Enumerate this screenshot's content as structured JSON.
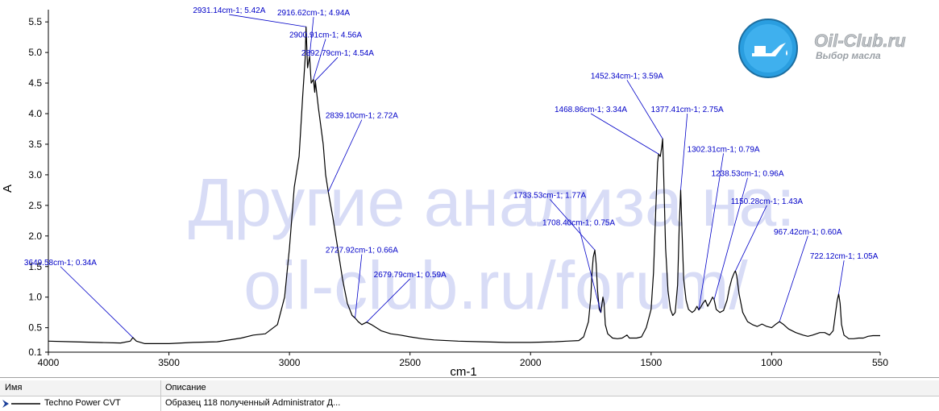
{
  "chart_data": {
    "type": "line",
    "xlabel": "cm-1",
    "ylabel": "A",
    "xlim": [
      4000,
      550
    ],
    "ylim": [
      0.1,
      5.7
    ],
    "x_ticks": [
      4000,
      3500,
      3000,
      2500,
      2000,
      1500,
      1000,
      550
    ],
    "y_ticks": [
      0.1,
      0.5,
      1.0,
      1.5,
      2.0,
      2.5,
      3.0,
      3.5,
      4.0,
      4.5,
      5.0,
      5.5
    ],
    "y_tick_labels": [
      "0.1",
      "0.5",
      "1.0",
      "1.5",
      "2.0",
      "2.5",
      "3.0",
      "3.5",
      "4.0",
      "4.5",
      "5.0",
      "5.5"
    ],
    "line_color": "#000000",
    "annotation_color": "#0000c8",
    "grid": false,
    "series": [
      {
        "name": "Techno Power CVT",
        "points": [
          [
            4000,
            0.28
          ],
          [
            3900,
            0.27
          ],
          [
            3800,
            0.26
          ],
          [
            3700,
            0.25
          ],
          [
            3660,
            0.28
          ],
          [
            3649.58,
            0.34
          ],
          [
            3635,
            0.28
          ],
          [
            3600,
            0.24
          ],
          [
            3500,
            0.24
          ],
          [
            3400,
            0.26
          ],
          [
            3300,
            0.27
          ],
          [
            3200,
            0.33
          ],
          [
            3150,
            0.38
          ],
          [
            3100,
            0.4
          ],
          [
            3050,
            0.55
          ],
          [
            3020,
            1.0
          ],
          [
            3000,
            1.8
          ],
          [
            2980,
            2.8
          ],
          [
            2960,
            3.3
          ],
          [
            2945,
            4.3
          ],
          [
            2935,
            4.9
          ],
          [
            2931.14,
            5.42
          ],
          [
            2925,
            4.75
          ],
          [
            2916.62,
            4.94
          ],
          [
            2910,
            4.5
          ],
          [
            2900.91,
            4.56
          ],
          [
            2895,
            4.35
          ],
          [
            2892.79,
            4.54
          ],
          [
            2880,
            4.1
          ],
          [
            2860,
            3.5
          ],
          [
            2850,
            3.0
          ],
          [
            2839.1,
            2.72
          ],
          [
            2820,
            2.3
          ],
          [
            2800,
            1.8
          ],
          [
            2780,
            1.3
          ],
          [
            2760,
            0.9
          ],
          [
            2740,
            0.7
          ],
          [
            2727.92,
            0.66
          ],
          [
            2715,
            0.6
          ],
          [
            2700,
            0.55
          ],
          [
            2690,
            0.57
          ],
          [
            2679.79,
            0.59
          ],
          [
            2660,
            0.55
          ],
          [
            2620,
            0.45
          ],
          [
            2580,
            0.4
          ],
          [
            2540,
            0.38
          ],
          [
            2500,
            0.35
          ],
          [
            2450,
            0.32
          ],
          [
            2400,
            0.3
          ],
          [
            2300,
            0.28
          ],
          [
            2200,
            0.27
          ],
          [
            2100,
            0.26
          ],
          [
            2000,
            0.26
          ],
          [
            1900,
            0.27
          ],
          [
            1850,
            0.28
          ],
          [
            1800,
            0.29
          ],
          [
            1780,
            0.35
          ],
          [
            1760,
            0.6
          ],
          [
            1750,
            1.0
          ],
          [
            1745,
            1.4
          ],
          [
            1740,
            1.65
          ],
          [
            1733.53,
            1.77
          ],
          [
            1728,
            1.55
          ],
          [
            1722,
            1.1
          ],
          [
            1715,
            0.8
          ],
          [
            1708.4,
            0.75
          ],
          [
            1700,
            1.0
          ],
          [
            1695,
            0.9
          ],
          [
            1690,
            0.55
          ],
          [
            1680,
            0.4
          ],
          [
            1660,
            0.33
          ],
          [
            1640,
            0.32
          ],
          [
            1620,
            0.33
          ],
          [
            1600,
            0.38
          ],
          [
            1590,
            0.33
          ],
          [
            1560,
            0.33
          ],
          [
            1540,
            0.35
          ],
          [
            1520,
            0.5
          ],
          [
            1500,
            0.8
          ],
          [
            1490,
            1.4
          ],
          [
            1480,
            2.5
          ],
          [
            1473,
            3.2
          ],
          [
            1468.86,
            3.34
          ],
          [
            1462,
            3.3
          ],
          [
            1456,
            3.45
          ],
          [
            1452.34,
            3.59
          ],
          [
            1448,
            3.0
          ],
          [
            1440,
            1.8
          ],
          [
            1430,
            1.1
          ],
          [
            1420,
            0.8
          ],
          [
            1410,
            0.7
          ],
          [
            1400,
            0.75
          ],
          [
            1390,
            1.2
          ],
          [
            1383,
            2.2
          ],
          [
            1377.41,
            2.75
          ],
          [
            1372,
            2.1
          ],
          [
            1365,
            1.3
          ],
          [
            1355,
            0.95
          ],
          [
            1345,
            0.8
          ],
          [
            1330,
            0.75
          ],
          [
            1320,
            0.78
          ],
          [
            1310,
            0.85
          ],
          [
            1302.31,
            0.79
          ],
          [
            1295,
            0.83
          ],
          [
            1285,
            0.9
          ],
          [
            1275,
            0.95
          ],
          [
            1265,
            0.85
          ],
          [
            1255,
            0.92
          ],
          [
            1245,
            1.0
          ],
          [
            1238.53,
            0.96
          ],
          [
            1230,
            0.8
          ],
          [
            1215,
            0.75
          ],
          [
            1200,
            0.78
          ],
          [
            1185,
            0.95
          ],
          [
            1175,
            1.15
          ],
          [
            1165,
            1.3
          ],
          [
            1155,
            1.4
          ],
          [
            1150.28,
            1.43
          ],
          [
            1145,
            1.35
          ],
          [
            1135,
            1.05
          ],
          [
            1120,
            0.75
          ],
          [
            1100,
            0.6
          ],
          [
            1080,
            0.55
          ],
          [
            1060,
            0.52
          ],
          [
            1040,
            0.56
          ],
          [
            1020,
            0.52
          ],
          [
            1000,
            0.5
          ],
          [
            985,
            0.55
          ],
          [
            967.42,
            0.6
          ],
          [
            950,
            0.55
          ],
          [
            930,
            0.48
          ],
          [
            900,
            0.42
          ],
          [
            870,
            0.38
          ],
          [
            850,
            0.36
          ],
          [
            830,
            0.38
          ],
          [
            800,
            0.42
          ],
          [
            780,
            0.42
          ],
          [
            760,
            0.38
          ],
          [
            745,
            0.45
          ],
          [
            735,
            0.75
          ],
          [
            728,
            0.95
          ],
          [
            722.12,
            1.05
          ],
          [
            716,
            0.9
          ],
          [
            710,
            0.55
          ],
          [
            700,
            0.38
          ],
          [
            680,
            0.32
          ],
          [
            660,
            0.32
          ],
          [
            640,
            0.33
          ],
          [
            620,
            0.33
          ],
          [
            600,
            0.36
          ],
          [
            580,
            0.37
          ],
          [
            560,
            0.37
          ],
          [
            550,
            0.37
          ]
        ]
      }
    ],
    "annotations": [
      {
        "x": 3649.58,
        "y": 0.34,
        "text": "3649.58cm-1; 0.34A",
        "lx": 3950,
        "ly": 1.5
      },
      {
        "x": 2931.14,
        "y": 5.42,
        "text": "2931.14cm-1; 5.42A",
        "lx": 3250,
        "ly": 5.62
      },
      {
        "x": 2916.62,
        "y": 4.94,
        "text": "2916.62cm-1; 4.94A",
        "lx": 2900,
        "ly": 5.58
      },
      {
        "x": 2900.91,
        "y": 4.56,
        "text": "2900.91cm-1; 4.56A",
        "lx": 2850,
        "ly": 5.22
      },
      {
        "x": 2892.79,
        "y": 4.54,
        "text": "2892.79cm-1; 4.54A",
        "lx": 2800,
        "ly": 4.92
      },
      {
        "x": 2839.1,
        "y": 2.72,
        "text": "2839.10cm-1; 2.72A",
        "lx": 2700,
        "ly": 3.9
      },
      {
        "x": 2727.92,
        "y": 0.66,
        "text": "2727.92cm-1; 0.66A",
        "lx": 2700,
        "ly": 1.7
      },
      {
        "x": 2679.79,
        "y": 0.59,
        "text": "2679.79cm-1; 0.59A",
        "lx": 2500,
        "ly": 1.3
      },
      {
        "x": 1733.53,
        "y": 1.77,
        "text": "1733.53cm-1; 1.77A",
        "lx": 1920,
        "ly": 2.6
      },
      {
        "x": 1708.4,
        "y": 0.75,
        "text": "1708.40cm-1; 0.75A",
        "lx": 1800,
        "ly": 2.15
      },
      {
        "x": 1468.86,
        "y": 3.34,
        "text": "1468.86cm-1; 3.34A",
        "lx": 1750,
        "ly": 4.0
      },
      {
        "x": 1452.34,
        "y": 3.59,
        "text": "1452.34cm-1; 3.59A",
        "lx": 1600,
        "ly": 4.55
      },
      {
        "x": 1377.41,
        "y": 2.75,
        "text": "1377.41cm-1; 2.75A",
        "lx": 1350,
        "ly": 4.0
      },
      {
        "x": 1302.31,
        "y": 0.79,
        "text": "1302.31cm-1; 0.79A",
        "lx": 1200,
        "ly": 3.35
      },
      {
        "x": 1238.53,
        "y": 0.96,
        "text": "1238.53cm-1; 0.96A",
        "lx": 1100,
        "ly": 2.95
      },
      {
        "x": 1150.28,
        "y": 1.43,
        "text": "1150.28cm-1; 1.43A",
        "lx": 1020,
        "ly": 2.5
      },
      {
        "x": 967.42,
        "y": 0.6,
        "text": "967.42cm-1; 0.60A",
        "lx": 850,
        "ly": 2.0
      },
      {
        "x": 722.12,
        "y": 1.05,
        "text": "722.12cm-1; 1.05A",
        "lx": 700,
        "ly": 1.6
      }
    ]
  },
  "watermark": {
    "line1": "Другие анализа на:",
    "line2": "oil-club.ru/forum/",
    "color": "#d8dcf6"
  },
  "logo": {
    "title": "Oil-Club.ru",
    "subtitle": "Выбор масла",
    "icon": "oil-can-icon",
    "color": "#2a9ee0"
  },
  "legend": {
    "headers": {
      "name": "Имя",
      "description": "Описание"
    },
    "rows": [
      {
        "name": "Techno Power CVT",
        "description": "Образец 118 полученный Administrator Д..."
      }
    ]
  }
}
